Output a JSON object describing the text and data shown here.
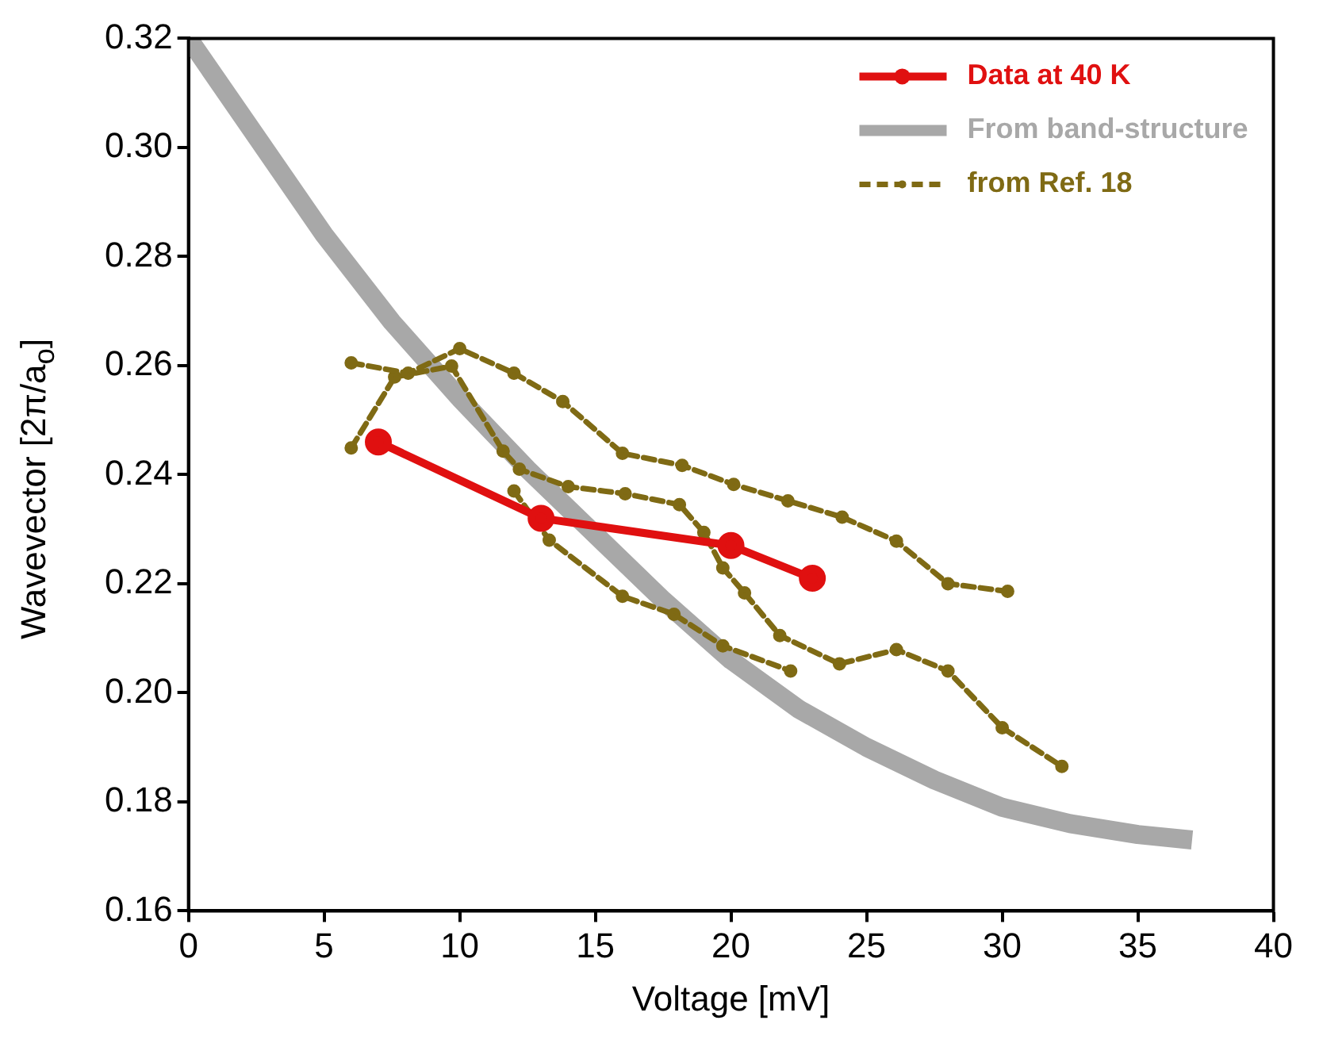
{
  "chart_data": {
    "type": "line",
    "xlabel": "Voltage [mV]",
    "ylabel": "Wavevector [2π/a$_{o}$]",
    "xlim": [
      0,
      40
    ],
    "xticks": [
      0,
      5,
      10,
      15,
      20,
      25,
      30,
      35,
      40
    ],
    "ylim": [
      0.16,
      0.32
    ],
    "yticks": [
      0.16,
      0.18,
      {
        "value": 0.2,
        "label": "0.20"
      },
      0.22,
      0.24,
      0.26,
      0.28,
      {
        "value": 0.3,
        "label": "0.30"
      },
      0.32
    ],
    "grid": false,
    "legend": "top right",
    "series": [
      {
        "name": "Data at 40 K",
        "color": "#e01010",
        "marker": "circle",
        "line_style": "solid",
        "x": [
          7,
          13,
          20,
          23
        ],
        "values": [
          0.246,
          0.232,
          0.227,
          0.221
        ]
      },
      {
        "name": "From band-structure",
        "color": "#a8a8a8",
        "marker": "none",
        "line_style": "solid",
        "x": [
          0,
          2.5,
          5,
          7.5,
          10,
          12.5,
          15,
          17.5,
          20,
          22.5,
          25,
          27.5,
          30,
          32.5,
          35,
          37
        ],
        "values": [
          0.32,
          0.302,
          0.284,
          0.268,
          0.254,
          0.241,
          0.229,
          0.217,
          0.206,
          0.197,
          0.19,
          0.184,
          0.179,
          0.176,
          0.174,
          0.173
        ]
      },
      {
        "name": "from Ref. 18",
        "color": "#7f6a14",
        "marker": "circle",
        "line_style": "dashed",
        "x": [
          6,
          8.1,
          10,
          12,
          13.8,
          16,
          18.2,
          20.1,
          22.1,
          24.1,
          26.1,
          28,
          30.2
        ],
        "values": [
          0.2605,
          0.2586,
          0.2631,
          0.2586,
          0.2534,
          0.2439,
          0.2417,
          0.2382,
          0.2352,
          0.2322,
          0.2278,
          0.22,
          0.2186
        ]
      },
      {
        "color": "#7f6a14",
        "marker": "circle",
        "line_style": "dashed",
        "x": [
          6,
          7.6,
          9.7,
          11.6,
          12.2,
          14,
          16.1,
          18.1,
          19,
          19.7,
          20.5,
          21.8,
          24,
          26.1,
          28,
          30,
          32.2
        ],
        "values": [
          0.2449,
          0.2579,
          0.2599,
          0.2443,
          0.241,
          0.2378,
          0.2365,
          0.2345,
          0.2294,
          0.2229,
          0.2183,
          0.2105,
          0.2053,
          0.2079,
          0.204,
          0.1936,
          0.1865
        ]
      },
      {
        "color": "#7f6a14",
        "marker": "circle",
        "line_style": "dashed",
        "x": [
          12,
          13.3,
          16,
          17.9,
          19.7,
          22.2
        ],
        "values": [
          0.237,
          0.228,
          0.2177,
          0.2144,
          0.2086,
          0.204
        ]
      }
    ]
  }
}
